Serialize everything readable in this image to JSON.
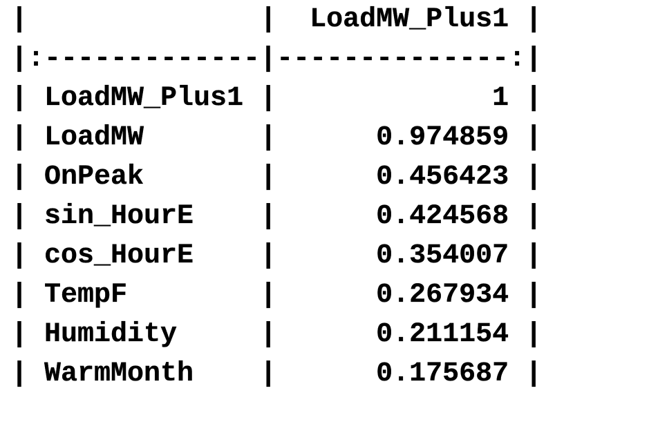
{
  "table": {
    "header": {
      "index_label": "",
      "column": "LoadMW_Plus1"
    },
    "rows": [
      {
        "name": "LoadMW_Plus1",
        "value": "1"
      },
      {
        "name": "LoadMW",
        "value": "0.974859"
      },
      {
        "name": "OnPeak",
        "value": "0.456423"
      },
      {
        "name": "sin_HourE",
        "value": "0.424568"
      },
      {
        "name": "cos_HourE",
        "value": "0.354007"
      },
      {
        "name": "TempF",
        "value": "0.267934"
      },
      {
        "name": "Humidity",
        "value": "0.211154"
      },
      {
        "name": "WarmMonth",
        "value": "0.175687"
      }
    ]
  }
}
